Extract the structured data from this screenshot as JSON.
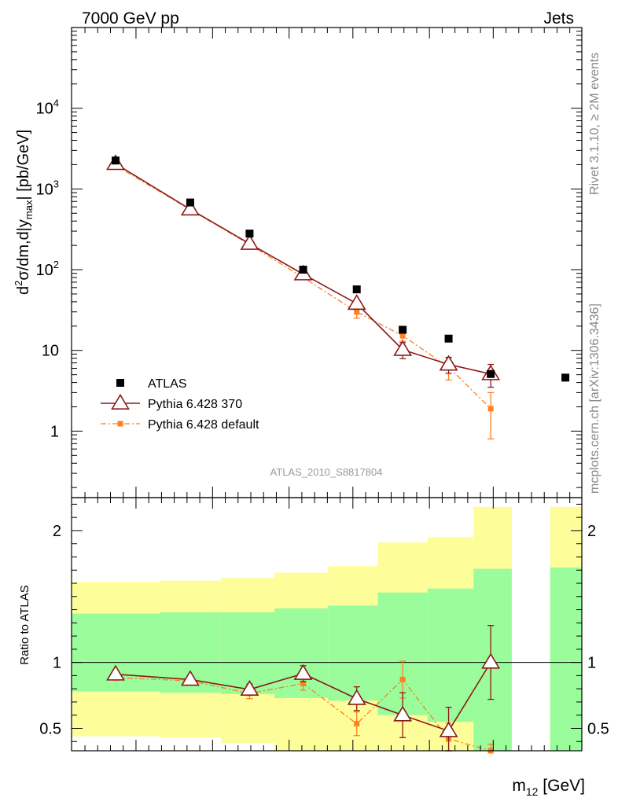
{
  "header": {
    "left": "7000 GeV pp",
    "right": "Jets"
  },
  "side_labels": {
    "rivet": "Rivet 3.1.10, ≥ 2M events",
    "mcplots": "mcplots.cern.ch [arXiv:1306.3436]"
  },
  "analysis_id": "ATLAS_2010_S8817804",
  "colors": {
    "data": "#000000",
    "pythia370": "#8b1a1a",
    "pythia_default": "#ff7f24",
    "band_inner": "#9afc9a",
    "band_outer": "#fdfd9a"
  },
  "chart_data": [
    {
      "type": "scatter",
      "panel": "main",
      "title": "",
      "ylabel_parts": {
        "d": "d",
        "sup": "2",
        "core": "σ/dm,d|y",
        "sub": "max",
        "tail": "| [pb/GeV]"
      },
      "xlabel_parts": {
        "m": "m",
        "sub": "12",
        "tail": " [GeV]"
      },
      "yscale": "log",
      "ylim": [
        0.15,
        100000
      ],
      "xlim": [
        0,
        13.33
      ],
      "y_ticks": [
        {
          "v": 1,
          "base": "1",
          "exp": ""
        },
        {
          "v": 10,
          "base": "10",
          "exp": ""
        },
        {
          "v": 100,
          "base": "10",
          "exp": "2"
        },
        {
          "v": 1000,
          "base": "10",
          "exp": "3"
        },
        {
          "v": 10000,
          "base": "10",
          "exp": "4"
        }
      ],
      "x_major_ticks": [
        1.8,
        3.7,
        5.55,
        7.4,
        9.2,
        11.1
      ],
      "legend_position": "bottom-left",
      "series": [
        {
          "name": "ATLAS",
          "style": "data",
          "x": [
            1.15,
            3.1,
            4.65,
            6.05,
            7.45,
            8.65,
            9.85,
            10.95,
            12.9
          ],
          "y": [
            2250,
            680,
            280,
            100,
            57,
            18,
            14,
            5.1,
            4.6
          ]
        },
        {
          "name": "Pythia 6.428 370",
          "style": "pythia370",
          "x": [
            1.15,
            3.1,
            4.65,
            6.05,
            7.45,
            8.65,
            9.85,
            10.95
          ],
          "y": [
            2050,
            560,
            210,
            88,
            38,
            10.2,
            6.7,
            5.1
          ],
          "err": [
            0,
            0,
            0,
            0,
            0,
            2.3,
            1.5,
            1.6
          ]
        },
        {
          "name": "Pythia 6.428 default",
          "style": "pythia_default",
          "x": [
            1.15,
            3.1,
            4.65,
            6.05,
            7.45,
            8.65,
            9.85,
            10.95
          ],
          "y": [
            1950,
            555,
            205,
            80,
            30,
            15.2,
            6.2,
            1.9
          ],
          "err": [
            0,
            0,
            0,
            0,
            5,
            2.2,
            1.9,
            1.1
          ]
        }
      ]
    },
    {
      "type": "scatter",
      "panel": "ratio",
      "ylabel": "Ratio to ATLAS",
      "ylim": [
        0.33,
        2.25
      ],
      "y_ticks": [
        {
          "v": 0.5,
          "label": "0.5"
        },
        {
          "v": 1,
          "label": "1"
        },
        {
          "v": 2,
          "label": "2"
        }
      ],
      "bands": [
        {
          "x0": 0.0,
          "x1": 2.3,
          "inner": [
            0.78,
            1.37
          ],
          "outer": [
            0.44,
            1.61
          ]
        },
        {
          "x0": 2.3,
          "x1": 3.9,
          "inner": [
            0.77,
            1.38
          ],
          "outer": [
            0.43,
            1.62
          ]
        },
        {
          "x0": 3.9,
          "x1": 5.3,
          "inner": [
            0.76,
            1.38
          ],
          "outer": [
            0.39,
            1.64
          ]
        },
        {
          "x0": 5.3,
          "x1": 6.7,
          "inner": [
            0.73,
            1.41
          ],
          "outer": [
            0.33,
            1.68
          ]
        },
        {
          "x0": 6.7,
          "x1": 8.0,
          "inner": [
            0.71,
            1.43
          ],
          "outer": [
            0.33,
            1.73
          ]
        },
        {
          "x0": 8.0,
          "x1": 9.3,
          "inner": [
            0.6,
            1.53
          ],
          "outer": [
            0.33,
            1.91
          ]
        },
        {
          "x0": 9.3,
          "x1": 10.5,
          "inner": [
            0.55,
            1.56
          ],
          "outer": [
            0.33,
            1.95
          ]
        },
        {
          "x0": 10.5,
          "x1": 11.5,
          "inner": [
            0.33,
            1.71
          ],
          "outer": [
            0.33,
            2.18
          ]
        },
        {
          "x0": 12.5,
          "x1": 13.33,
          "inner": [
            0.33,
            1.72
          ],
          "outer": [
            0.33,
            2.18
          ]
        }
      ],
      "series": [
        {
          "name": "Pythia 6.428 370",
          "style": "pythia370",
          "x": [
            1.15,
            3.1,
            4.65,
            6.05,
            7.45,
            8.65,
            9.85,
            10.95
          ],
          "y": [
            0.91,
            0.87,
            0.795,
            0.915,
            0.725,
            0.6,
            0.48,
            1.0
          ],
          "err": [
            0.02,
            0.03,
            0.04,
            0.06,
            0.09,
            0.17,
            0.18,
            0.28
          ]
        },
        {
          "name": "Pythia 6.428 default",
          "style": "pythia_default",
          "x": [
            1.15,
            3.1,
            4.65,
            6.05,
            7.45,
            8.65,
            9.85,
            10.95
          ],
          "y": [
            0.885,
            0.86,
            0.765,
            0.84,
            0.535,
            0.87,
            0.42,
            0.33
          ],
          "err": [
            0.02,
            0.03,
            0.04,
            0.05,
            0.09,
            0.14,
            0.12,
            0.05
          ]
        }
      ]
    }
  ]
}
